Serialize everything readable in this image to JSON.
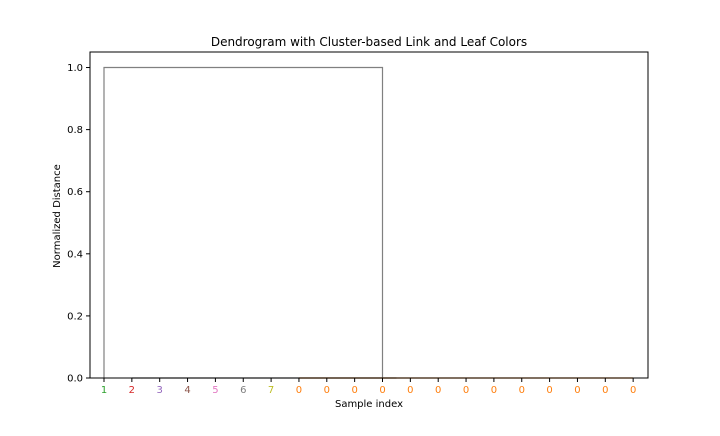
{
  "chart_data": {
    "type": "dendrogram",
    "title": "Dendrogram with Cluster-based Link and Leaf Colors",
    "xlabel": "Sample index",
    "ylabel": "Normalized Distance",
    "ylim": [
      0,
      1.05
    ],
    "yticks": [
      "0.0",
      "0.2",
      "0.4",
      "0.6",
      "0.8",
      "1.0"
    ],
    "ytick_values": [
      0,
      0.2,
      0.4,
      0.6,
      0.8,
      1.0
    ],
    "grid": false,
    "leaves": [
      {
        "label": "1",
        "color": "#2ca02c"
      },
      {
        "label": "2",
        "color": "#d62728"
      },
      {
        "label": "3",
        "color": "#9467bd"
      },
      {
        "label": "4",
        "color": "#8c564b"
      },
      {
        "label": "5",
        "color": "#e377c2"
      },
      {
        "label": "6",
        "color": "#7f7f7f"
      },
      {
        "label": "7",
        "color": "#bcbd22"
      },
      {
        "label": "0",
        "color": "#ff7f0e"
      },
      {
        "label": "0",
        "color": "#ff7f0e"
      },
      {
        "label": "0",
        "color": "#ff7f0e"
      },
      {
        "label": "0",
        "color": "#ff7f0e"
      },
      {
        "label": "0",
        "color": "#ff7f0e"
      },
      {
        "label": "0",
        "color": "#ff7f0e"
      },
      {
        "label": "0",
        "color": "#ff7f0e"
      },
      {
        "label": "0",
        "color": "#ff7f0e"
      },
      {
        "label": "0",
        "color": "#ff7f0e"
      },
      {
        "label": "0",
        "color": "#ff7f0e"
      },
      {
        "label": "0",
        "color": "#ff7f0e"
      },
      {
        "label": "0",
        "color": "#ff7f0e"
      },
      {
        "label": "0",
        "color": "#ff7f0e"
      }
    ],
    "links": [
      {
        "left_leaf_start": 0,
        "left_leaf_end": 0,
        "right_leaf_start": 1,
        "right_leaf_end": 19,
        "height": 1.0,
        "left_height": 0.0,
        "right_height": 0.0,
        "color": "#808080"
      },
      {
        "left_leaf_start": 1,
        "left_leaf_end": 1,
        "right_leaf_start": 2,
        "right_leaf_end": 19,
        "height": 0.0,
        "left_height": 0.0,
        "right_height": 0.0,
        "color": "#808080"
      },
      {
        "left_leaf_start": 7,
        "left_leaf_end": 19,
        "right_leaf_start": 7,
        "right_leaf_end": 19,
        "height": 0.0,
        "left_height": 0.0,
        "right_height": 0.0,
        "color": "#ff7f0e"
      }
    ],
    "colors": {
      "top_link": "#808080",
      "axis": "#000000"
    }
  }
}
